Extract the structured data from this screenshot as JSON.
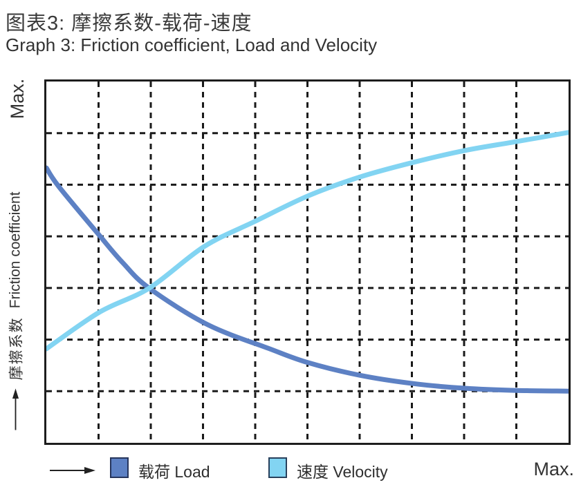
{
  "title": {
    "zh": "图表3:  摩擦系数-载荷-速度",
    "en": "Graph 3: Friction coefficient, Load and Velocity"
  },
  "axes": {
    "y_max_label": "Max.",
    "x_max_label": "Max.",
    "y_label_zh": "摩擦系数",
    "y_label_en": "Friction coefficient"
  },
  "legend": [
    {
      "label": "载荷 Load",
      "color": "#5d81c4"
    },
    {
      "label": "速度 Velocity",
      "color": "#82d4f2"
    }
  ],
  "colors": {
    "grid": "#1a1a1a",
    "plot_border": "#1d1d1d",
    "load_curve": "#5d81c4",
    "velocity_curve": "#82d4f2"
  },
  "chart_data": {
    "type": "line",
    "title": "Graph 3: Friction coefficient, Load and Velocity",
    "xlabel": "",
    "ylabel": "摩擦系数 Friction coefficient",
    "x_axis": {
      "min_label": "",
      "max_label": "Max.",
      "unit": "relative (0–1 of Max.)"
    },
    "y_axis": {
      "min_label": "",
      "max_label": "Max.",
      "unit": "relative (0–1 of Max.)"
    },
    "grid": {
      "cols": 10,
      "rows": 7,
      "style": "dashed",
      "on": true
    },
    "legend_position": "bottom",
    "series": [
      {
        "name": "载荷 Load",
        "color": "#5d81c4",
        "shape": "decreasing, levels off near y=0.14",
        "points": [
          [
            0.0,
            0.761
          ],
          [
            0.024,
            0.709
          ],
          [
            0.101,
            0.575
          ],
          [
            0.146,
            0.499
          ],
          [
            0.197,
            0.428
          ],
          [
            0.309,
            0.327
          ],
          [
            0.428,
            0.26
          ],
          [
            0.501,
            0.222
          ],
          [
            0.6,
            0.187
          ],
          [
            0.702,
            0.164
          ],
          [
            0.801,
            0.151
          ],
          [
            0.901,
            0.145
          ],
          [
            1.0,
            0.143
          ]
        ]
      },
      {
        "name": "速度 Velocity",
        "color": "#82d4f2",
        "shape": "increasing, saturating toward y=0.86",
        "points": [
          [
            0.0,
            0.26
          ],
          [
            0.101,
            0.361
          ],
          [
            0.197,
            0.428
          ],
          [
            0.302,
            0.543
          ],
          [
            0.401,
            0.614
          ],
          [
            0.502,
            0.684
          ],
          [
            0.601,
            0.736
          ],
          [
            0.702,
            0.776
          ],
          [
            0.801,
            0.809
          ],
          [
            0.901,
            0.834
          ],
          [
            1.0,
            0.859
          ]
        ]
      }
    ],
    "annotations": [
      "curves intersect at approximately (0.20, 0.43)"
    ]
  }
}
